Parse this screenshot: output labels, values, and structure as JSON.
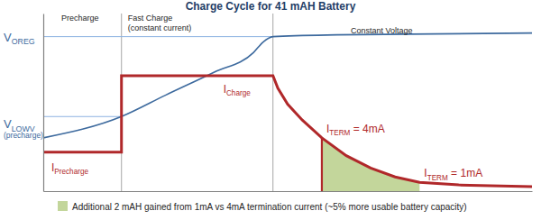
{
  "chart_data": {
    "type": "line",
    "title": "Charge Cycle for 41 mAH Battery",
    "xlim": [
      0,
      100
    ],
    "ylim": [
      0,
      100
    ],
    "xticks": [],
    "yticks": [],
    "tick_labels": false,
    "grid": false,
    "series": [
      {
        "color": "#3d6a9e",
        "x": [
          0,
          16,
          25,
          35,
          43,
          45,
          47,
          60,
          80,
          100
        ],
        "values": [
          30,
          42,
          54,
          67,
          78,
          84,
          87,
          88,
          88.5,
          89
        ]
      },
      {
        "color": "#b0282a",
        "x": [
          0,
          16,
          16,
          47,
          48,
          50,
          53,
          57,
          62,
          67,
          72,
          77,
          85,
          100
        ],
        "values": [
          22,
          22,
          65,
          65,
          58,
          49,
          40,
          30,
          20,
          13,
          8,
          5,
          3.5,
          2.5
        ]
      }
    ],
    "phases": [
      {
        "label": "Precharge",
        "start": 0,
        "end": 16,
        "current_label": {
          "main": "I",
          "sub": "Precharge"
        }
      },
      {
        "label": "Fast Charge",
        "sublabel": "(constant current)",
        "start": 16,
        "end": 47,
        "current_label": {
          "main": "I",
          "sub": "Charge"
        }
      },
      {
        "label": "Constant Voltage",
        "start": 47,
        "end": 100
      }
    ],
    "reference_lines": [
      {
        "main": "V",
        "sub": "OREG",
        "value": 87,
        "end": 47
      },
      {
        "main": "V",
        "sub": "LOWV",
        "note": "(precharge)",
        "value": 42,
        "end": 16
      }
    ],
    "terminations": [
      {
        "main": "I",
        "sub": "TERM",
        "rest": " = 4mA",
        "x": 57
      },
      {
        "main": "I",
        "sub": "TERM",
        "rest": " = 1mA",
        "x": 77
      }
    ],
    "highlight": {
      "label": "Additional 2 mAH gained from 1mA vs 4mA termination current (~5% more usable battery capacity)",
      "color": "#c3d69b"
    }
  }
}
